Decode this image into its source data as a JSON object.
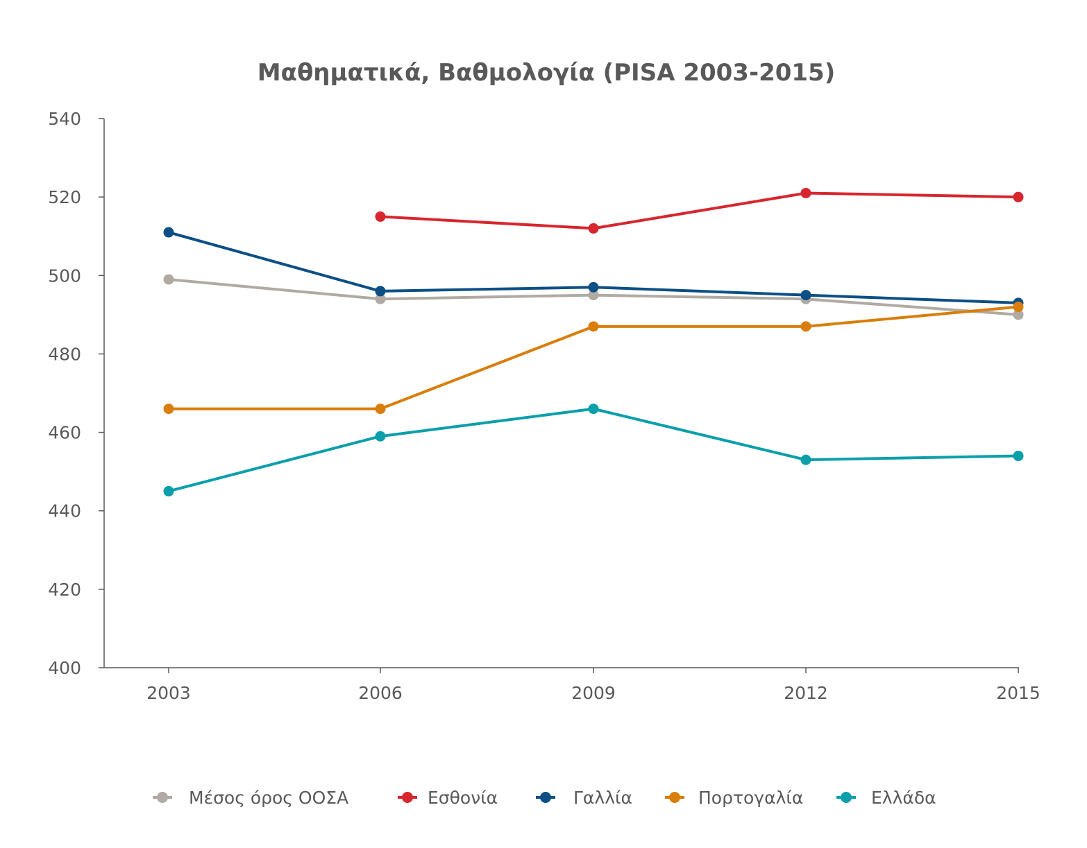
{
  "chart_data": {
    "type": "line",
    "title": "Μαθηματικά, Βαθμολογία (PISA 2003-2015)",
    "xlabel": "",
    "ylabel": "",
    "categories": [
      "2003",
      "2006",
      "2009",
      "2012",
      "2015"
    ],
    "ylim": [
      400,
      540
    ],
    "yticks": [
      540,
      520,
      500,
      480,
      460,
      440,
      420,
      400
    ],
    "grid": false,
    "legend_position": "bottom",
    "series": [
      {
        "name": "Μέσος όρος ΟΟΣΑ",
        "color": "#b1aaa3",
        "values": [
          499,
          494,
          495,
          494,
          490
        ]
      },
      {
        "name": "Εσθονία",
        "color": "#d8262e",
        "values": [
          null,
          515,
          512,
          521,
          520
        ]
      },
      {
        "name": "Γαλλία",
        "color": "#0c4f86",
        "values": [
          511,
          496,
          497,
          495,
          493
        ]
      },
      {
        "name": "Πορτογαλία",
        "color": "#d97e0a",
        "values": [
          466,
          466,
          487,
          487,
          492
        ]
      },
      {
        "name": "Ελλάδα",
        "color": "#0a9fab",
        "values": [
          445,
          459,
          466,
          453,
          454
        ]
      }
    ]
  }
}
